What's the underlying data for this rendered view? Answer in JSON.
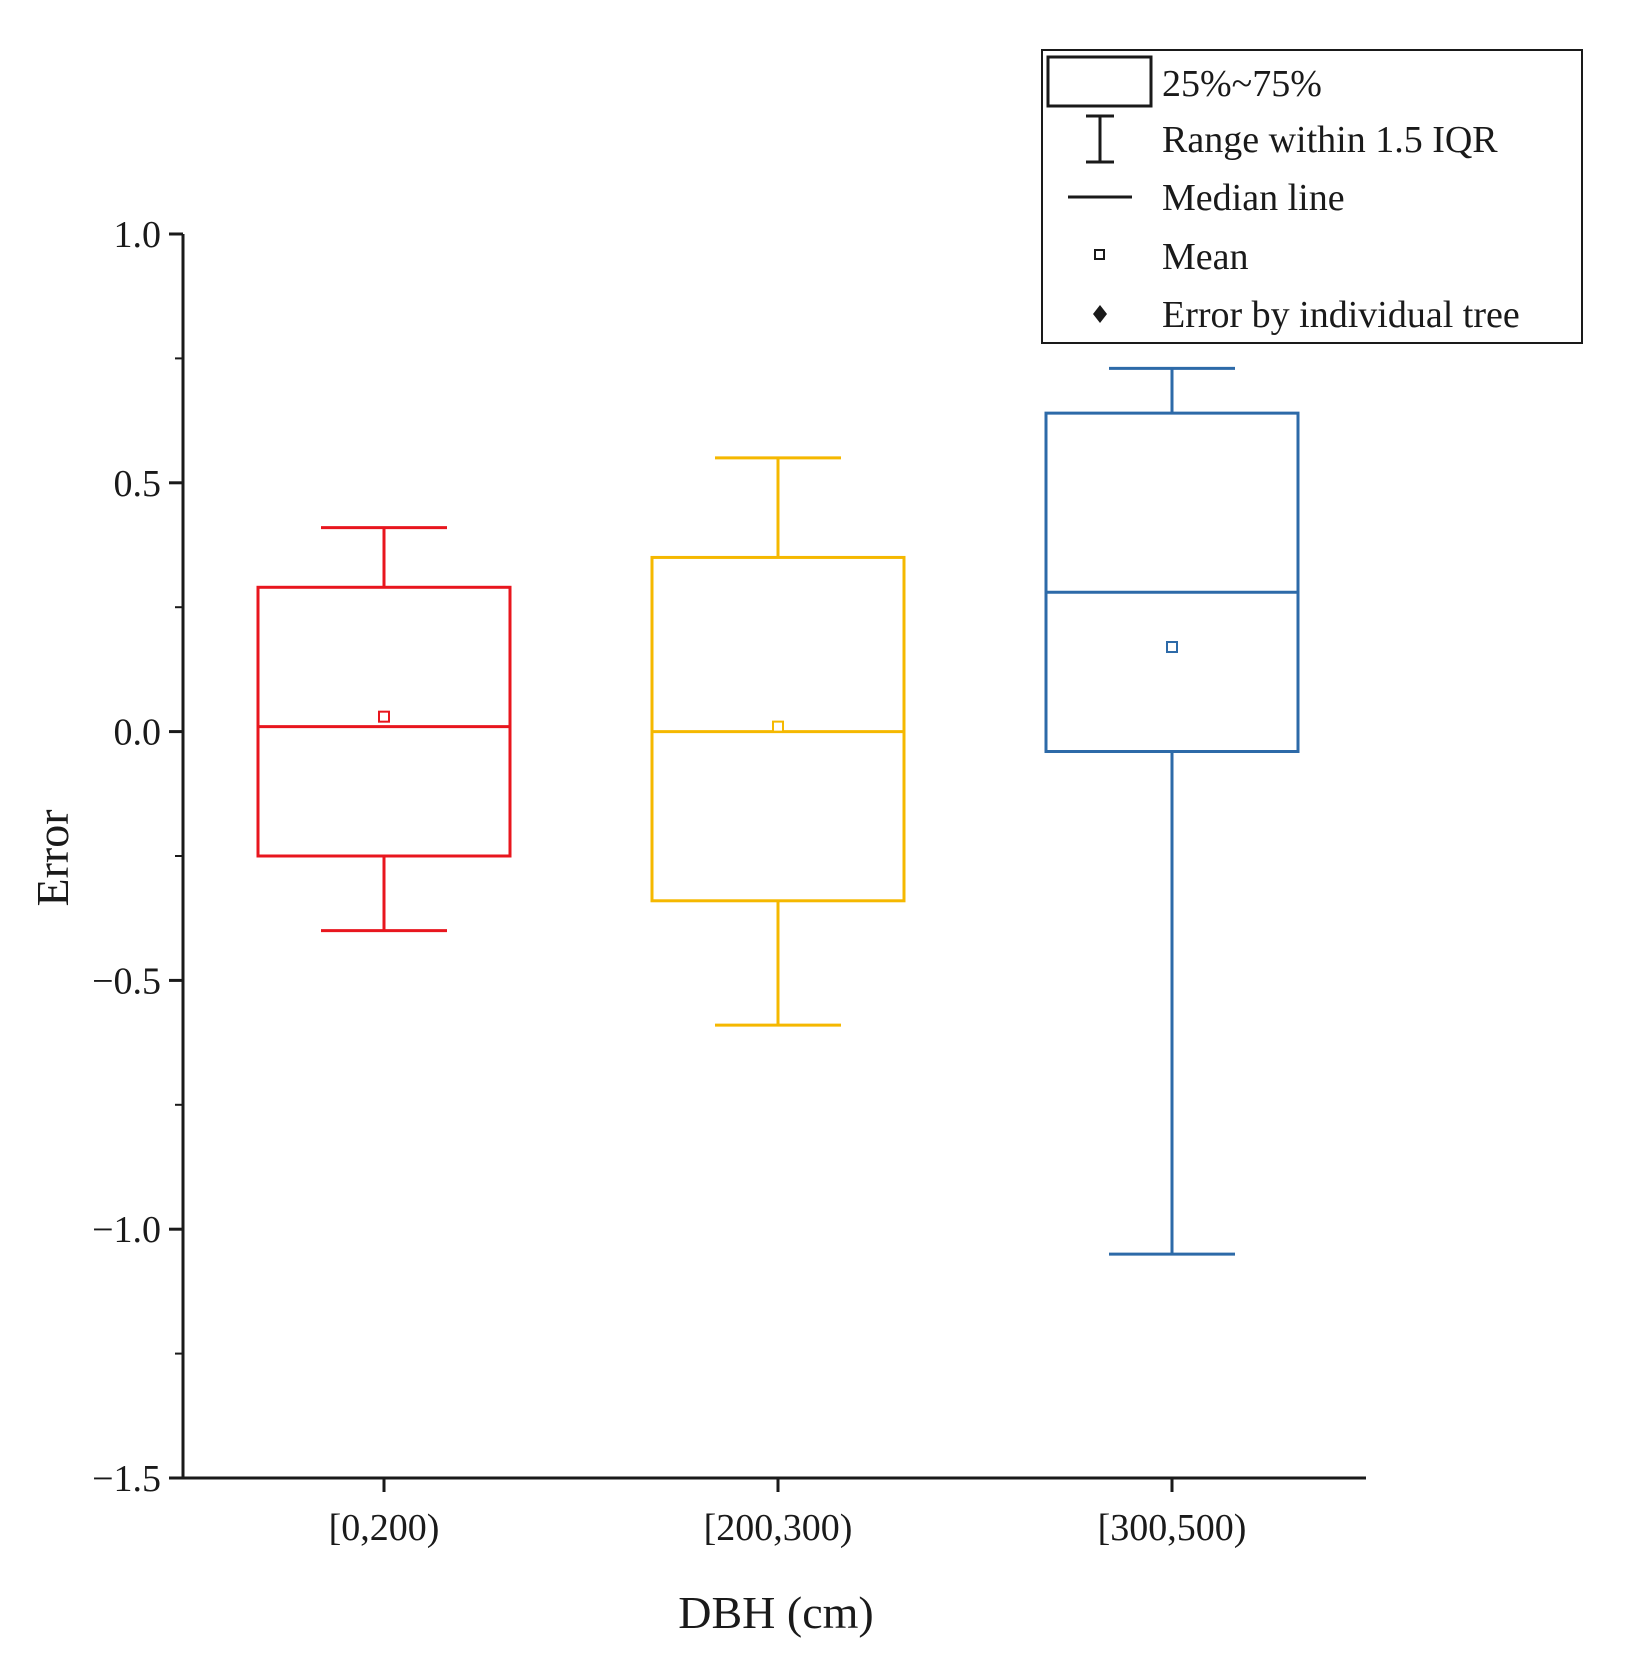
{
  "chart_data": {
    "type": "box",
    "xlabel": "DBH (cm)",
    "ylabel": "Error",
    "ylim": [
      -1.5,
      1.0
    ],
    "yticks": [
      {
        "value": 1.0,
        "label": "1.0"
      },
      {
        "value": 0.5,
        "label": "0.5"
      },
      {
        "value": 0.0,
        "label": "0.0"
      },
      {
        "value": -0.5,
        "label": "−0.5"
      },
      {
        "value": -1.0,
        "label": "−1.0"
      },
      {
        "value": -1.5,
        "label": "−1.5"
      }
    ],
    "yminor_ticks": [
      0.75,
      0.25,
      -0.25,
      -0.75,
      -1.25
    ],
    "categories": [
      "[0,200)",
      "[200,300)",
      "[300,500)"
    ],
    "boxes": [
      {
        "category": "[0,200)",
        "whisker_low": -0.4,
        "q1": -0.25,
        "median": 0.01,
        "q3": 0.29,
        "whisker_high": 0.41,
        "mean": 0.03,
        "color": "#e8161e"
      },
      {
        "category": "[200,300)",
        "whisker_low": -0.59,
        "q1": -0.34,
        "median": 0.0,
        "q3": 0.35,
        "whisker_high": 0.55,
        "mean": 0.01,
        "color": "#f5b800"
      },
      {
        "category": "[300,500)",
        "whisker_low": -1.05,
        "q1": -0.04,
        "median": 0.28,
        "q3": 0.64,
        "whisker_high": 0.73,
        "mean": 0.17,
        "color": "#2d6aa8"
      }
    ],
    "grid": false,
    "legend": {
      "position": "top-right",
      "items": [
        {
          "key": "box",
          "label": "25%~75%"
        },
        {
          "key": "range",
          "label": "Range within 1.5 IQR"
        },
        {
          "key": "median",
          "label": "Median line"
        },
        {
          "key": "mean",
          "label": "Mean"
        },
        {
          "key": "point",
          "label": "Error by individual tree"
        }
      ]
    }
  }
}
